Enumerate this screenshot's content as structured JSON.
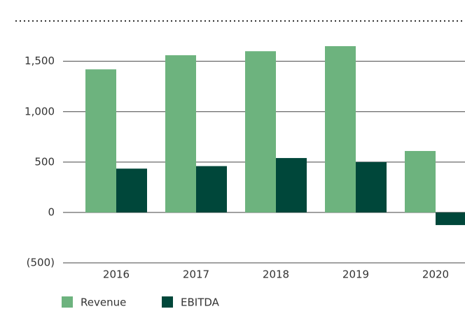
{
  "chart_data": {
    "type": "bar",
    "categories": [
      "2016",
      "2017",
      "2018",
      "2019",
      "2020"
    ],
    "series": [
      {
        "name": "Revenue",
        "color": "#6db37e",
        "values": [
          1420,
          1560,
          1600,
          1650,
          610
        ]
      },
      {
        "name": "EBITDA",
        "color": "#00473a",
        "values": [
          435,
          460,
          540,
          500,
          -125
        ]
      }
    ],
    "ylim": [
      -500,
      1900
    ],
    "yticks": [
      {
        "value": -500,
        "label": "(500)"
      },
      0,
      500,
      {
        "value": 1000,
        "label": "1,000"
      },
      {
        "value": 1500,
        "label": "1,500"
      }
    ],
    "grid": true,
    "legend": "bottom"
  }
}
